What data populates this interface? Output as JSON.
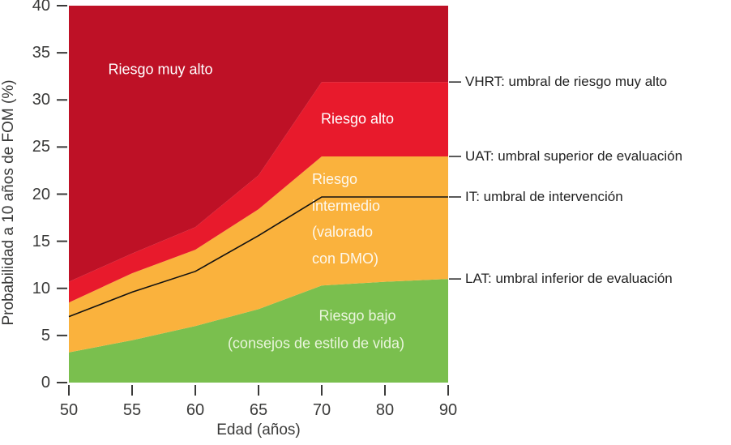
{
  "chart_data": {
    "type": "area",
    "title": "",
    "xlabel": "Edad (años)",
    "ylabel": "Probabilidad a 10 años de FOM (%)",
    "x": [
      50,
      55,
      60,
      65,
      70,
      80,
      90
    ],
    "ylim": [
      0,
      40
    ],
    "yticks": [
      0,
      5,
      10,
      15,
      20,
      25,
      30,
      35,
      40
    ],
    "grid": false,
    "legend": "none",
    "series": [
      {
        "key": "LAT",
        "name": "LAT: umbral inferior de evaluación",
        "values": [
          3.2,
          4.5,
          6.0,
          7.8,
          10.3,
          10.7,
          11.0
        ]
      },
      {
        "key": "IT",
        "name": "IT: umbral de intervención",
        "values": [
          7.0,
          9.6,
          11.8,
          15.6,
          19.7,
          19.7,
          19.7
        ]
      },
      {
        "key": "UAT",
        "name": "UAT: umbral superior de evaluación",
        "values": [
          8.5,
          11.6,
          14.1,
          18.4,
          24.0,
          24.0,
          24.0
        ]
      },
      {
        "key": "VHRT",
        "name": "VHRT: umbral de riesgo muy alto",
        "values": [
          10.7,
          13.7,
          16.5,
          22.0,
          31.9,
          31.9,
          31.9
        ]
      }
    ],
    "zones": [
      {
        "name": "Riesgo bajo (consejos de estilo de vida)",
        "between": [
          "bottom",
          "LAT"
        ],
        "color": "#7abf4e"
      },
      {
        "name": "Riesgo intermedio (valorado con DMO)",
        "between": [
          "LAT",
          "UAT"
        ],
        "color": "#fab23d"
      },
      {
        "name": "Riesgo alto",
        "between": [
          "UAT",
          "VHRT"
        ],
        "color": "#e81a2c"
      },
      {
        "name": "Riesgo muy alto",
        "between": [
          "VHRT",
          "top"
        ],
        "color": "#be1126"
      }
    ],
    "threshold_line": {
      "series": "IT",
      "color": "#111111"
    },
    "annotations": [
      {
        "anchor": "VHRT",
        "label": "VHRT: umbral de riesgo muy alto"
      },
      {
        "anchor": "UAT",
        "label": "UAT: umbral superior de evaluación"
      },
      {
        "anchor": "IT",
        "label": "IT: umbral de intervención"
      },
      {
        "anchor": "LAT",
        "label": "LAT: umbral inferior de evaluación"
      }
    ]
  },
  "zone_labels": {
    "very_high": "Riesgo muy alto",
    "high": "Riesgo alto",
    "intermediate": [
      "Riesgo",
      "intermedio",
      "(valorado",
      "con DMO)"
    ],
    "low": [
      "Riesgo bajo",
      "(consejos de estilo de vida)"
    ]
  },
  "palette": {
    "very_high_risk": "#be1126",
    "high_risk": "#e81a2c",
    "intermediate_risk": "#fab23d",
    "low_risk": "#7abf4e",
    "axis_text": "#3a3a39",
    "annotation_text": "#222222",
    "threshold_line": "#111111"
  }
}
